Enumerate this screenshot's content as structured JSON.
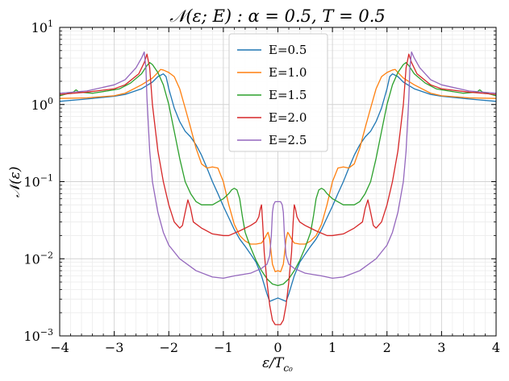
{
  "chart_data": {
    "type": "line",
    "title": "𝒩(ε; E) :  α = 0.5, T = 0.5",
    "xlabel": "ε/T",
    "xlabel_sub": "c₀",
    "ylabel": "𝒩(ε)",
    "xlim": [
      -4,
      4
    ],
    "ylim": [
      0.001,
      10
    ],
    "yscale": "log",
    "grid": true,
    "legend_position": "top-center",
    "x_ticks": [
      {
        "value": -4,
        "label": "−4"
      },
      {
        "value": -3,
        "label": "−3"
      },
      {
        "value": -2,
        "label": "−2"
      },
      {
        "value": -1,
        "label": "−1"
      },
      {
        "value": 0,
        "label": "0"
      },
      {
        "value": 1,
        "label": "1"
      },
      {
        "value": 2,
        "label": "2"
      },
      {
        "value": 3,
        "label": "3"
      },
      {
        "value": 4,
        "label": "4"
      }
    ],
    "y_ticks": [
      {
        "value": 0.001,
        "base": "10",
        "exp": "−3"
      },
      {
        "value": 0.01,
        "base": "10",
        "exp": "−2"
      },
      {
        "value": 0.1,
        "base": "10",
        "exp": "−1"
      },
      {
        "value": 1,
        "base": "10",
        "exp": "0"
      },
      {
        "value": 10,
        "base": "10",
        "exp": "1"
      }
    ],
    "series": [
      {
        "name": "E=0.5",
        "color": "#1f77b4",
        "points": [
          [
            0,
            0.0031
          ],
          [
            0.05,
            0.003
          ],
          [
            0.1,
            0.0029
          ],
          [
            0.15,
            0.0028
          ],
          [
            0.2,
            0.0035
          ],
          [
            0.3,
            0.006
          ],
          [
            0.4,
            0.009
          ],
          [
            0.5,
            0.0115
          ],
          [
            0.6,
            0.0145
          ],
          [
            0.7,
            0.018
          ],
          [
            0.8,
            0.024
          ],
          [
            0.9,
            0.034
          ],
          [
            1.0,
            0.048
          ],
          [
            1.1,
            0.07
          ],
          [
            1.2,
            0.1
          ],
          [
            1.3,
            0.15
          ],
          [
            1.4,
            0.22
          ],
          [
            1.5,
            0.3
          ],
          [
            1.6,
            0.38
          ],
          [
            1.7,
            0.45
          ],
          [
            1.8,
            0.6
          ],
          [
            1.9,
            0.9
          ],
          [
            2.0,
            1.6
          ],
          [
            2.05,
            2.3
          ],
          [
            2.1,
            2.5
          ],
          [
            2.2,
            2.3
          ],
          [
            2.3,
            1.95
          ],
          [
            2.5,
            1.6
          ],
          [
            2.8,
            1.35
          ],
          [
            3.0,
            1.28
          ],
          [
            3.5,
            1.18
          ],
          [
            4.0,
            1.1
          ]
        ]
      },
      {
        "name": "E=1.0",
        "color": "#ff7f0e",
        "points": [
          [
            0,
            0.007
          ],
          [
            0.05,
            0.0068
          ],
          [
            0.1,
            0.0085
          ],
          [
            0.15,
            0.018
          ],
          [
            0.18,
            0.022
          ],
          [
            0.2,
            0.021
          ],
          [
            0.25,
            0.018
          ],
          [
            0.3,
            0.016
          ],
          [
            0.4,
            0.0155
          ],
          [
            0.5,
            0.0155
          ],
          [
            0.6,
            0.017
          ],
          [
            0.7,
            0.02
          ],
          [
            0.8,
            0.028
          ],
          [
            0.9,
            0.05
          ],
          [
            1.0,
            0.1
          ],
          [
            1.1,
            0.15
          ],
          [
            1.2,
            0.155
          ],
          [
            1.3,
            0.15
          ],
          [
            1.4,
            0.17
          ],
          [
            1.5,
            0.27
          ],
          [
            1.6,
            0.5
          ],
          [
            1.7,
            0.9
          ],
          [
            1.8,
            1.6
          ],
          [
            1.9,
            2.3
          ],
          [
            2.0,
            2.6
          ],
          [
            2.1,
            2.8
          ],
          [
            2.15,
            2.85
          ],
          [
            2.2,
            2.6
          ],
          [
            2.3,
            2.2
          ],
          [
            2.5,
            1.8
          ],
          [
            2.8,
            1.4
          ],
          [
            3.0,
            1.3
          ],
          [
            3.5,
            1.22
          ],
          [
            4.0,
            1.2
          ]
        ]
      },
      {
        "name": "E=1.5",
        "color": "#2ca02c",
        "points": [
          [
            0,
            0.0045
          ],
          [
            0.1,
            0.0047
          ],
          [
            0.2,
            0.0055
          ],
          [
            0.3,
            0.007
          ],
          [
            0.4,
            0.0095
          ],
          [
            0.5,
            0.014
          ],
          [
            0.6,
            0.022
          ],
          [
            0.65,
            0.035
          ],
          [
            0.7,
            0.06
          ],
          [
            0.75,
            0.078
          ],
          [
            0.8,
            0.082
          ],
          [
            0.85,
            0.078
          ],
          [
            0.9,
            0.07
          ],
          [
            1.0,
            0.06
          ],
          [
            1.2,
            0.05
          ],
          [
            1.4,
            0.05
          ],
          [
            1.5,
            0.055
          ],
          [
            1.6,
            0.07
          ],
          [
            1.7,
            0.1
          ],
          [
            1.8,
            0.2
          ],
          [
            1.9,
            0.45
          ],
          [
            2.0,
            1.0
          ],
          [
            2.1,
            1.8
          ],
          [
            2.2,
            2.6
          ],
          [
            2.3,
            3.3
          ],
          [
            2.35,
            3.5
          ],
          [
            2.4,
            3.2
          ],
          [
            2.5,
            2.5
          ],
          [
            2.7,
            1.9
          ],
          [
            2.9,
            1.6
          ],
          [
            3.0,
            1.55
          ],
          [
            3.4,
            1.4
          ],
          [
            3.65,
            1.45
          ],
          [
            3.7,
            1.55
          ],
          [
            3.75,
            1.45
          ],
          [
            4.0,
            1.3
          ]
        ]
      },
      {
        "name": "E=2.0",
        "color": "#d62728",
        "points": [
          [
            0,
            0.0014
          ],
          [
            0.05,
            0.0014
          ],
          [
            0.1,
            0.0016
          ],
          [
            0.15,
            0.0025
          ],
          [
            0.2,
            0.005
          ],
          [
            0.25,
            0.012
          ],
          [
            0.28,
            0.03
          ],
          [
            0.3,
            0.05
          ],
          [
            0.32,
            0.045
          ],
          [
            0.35,
            0.035
          ],
          [
            0.4,
            0.03
          ],
          [
            0.5,
            0.027
          ],
          [
            0.7,
            0.023
          ],
          [
            0.9,
            0.02
          ],
          [
            1.0,
            0.02
          ],
          [
            1.2,
            0.021
          ],
          [
            1.4,
            0.025
          ],
          [
            1.55,
            0.03
          ],
          [
            1.6,
            0.045
          ],
          [
            1.65,
            0.058
          ],
          [
            1.7,
            0.04
          ],
          [
            1.75,
            0.027
          ],
          [
            1.8,
            0.025
          ],
          [
            1.9,
            0.03
          ],
          [
            2.0,
            0.05
          ],
          [
            2.1,
            0.1
          ],
          [
            2.2,
            0.25
          ],
          [
            2.3,
            1.0
          ],
          [
            2.35,
            3.0
          ],
          [
            2.4,
            4.5
          ],
          [
            2.45,
            3.5
          ],
          [
            2.55,
            2.5
          ],
          [
            2.8,
            1.8
          ],
          [
            3.0,
            1.6
          ],
          [
            3.5,
            1.45
          ],
          [
            4.0,
            1.35
          ]
        ]
      },
      {
        "name": "E=2.5",
        "color": "#9467bd",
        "points": [
          [
            0,
            0.055
          ],
          [
            0.05,
            0.055
          ],
          [
            0.08,
            0.05
          ],
          [
            0.1,
            0.04
          ],
          [
            0.12,
            0.02
          ],
          [
            0.15,
            0.011
          ],
          [
            0.2,
            0.0085
          ],
          [
            0.3,
            0.0075
          ],
          [
            0.5,
            0.0065
          ],
          [
            0.8,
            0.006
          ],
          [
            1.0,
            0.0056
          ],
          [
            1.2,
            0.0058
          ],
          [
            1.5,
            0.007
          ],
          [
            1.8,
            0.01
          ],
          [
            2.0,
            0.015
          ],
          [
            2.1,
            0.022
          ],
          [
            2.2,
            0.04
          ],
          [
            2.3,
            0.1
          ],
          [
            2.35,
            0.25
          ],
          [
            2.4,
            1.2
          ],
          [
            2.42,
            3.0
          ],
          [
            2.45,
            4.8
          ],
          [
            2.5,
            4.0
          ],
          [
            2.6,
            3.0
          ],
          [
            2.8,
            2.1
          ],
          [
            3.0,
            1.8
          ],
          [
            3.5,
            1.5
          ],
          [
            4.0,
            1.4
          ]
        ]
      }
    ]
  }
}
